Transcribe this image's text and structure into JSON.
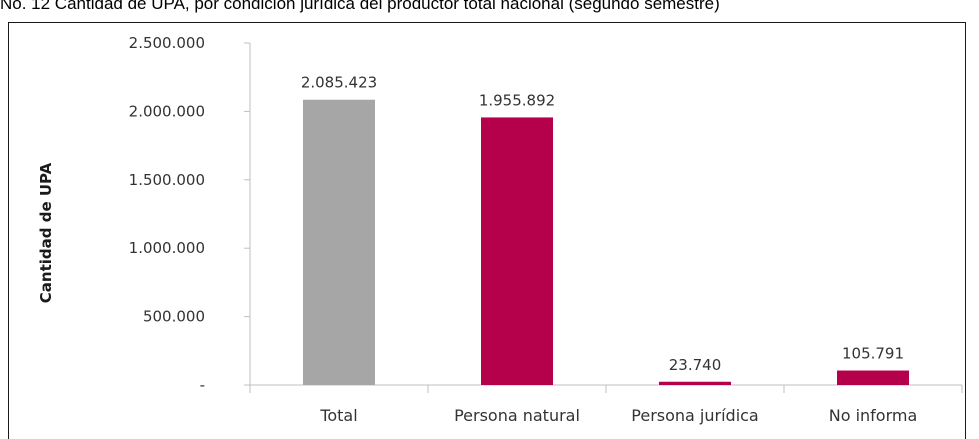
{
  "caption": "No. 12 Cantidad de UPA, por condición jurídica del productor total nacional (segundo semestre)",
  "chart_data": {
    "type": "bar",
    "title": "",
    "xlabel": "",
    "ylabel": "Cantidad de UPA",
    "categories": [
      "Total",
      "Persona natural",
      "Persona jurídica",
      "No informa"
    ],
    "values": [
      2085423,
      1955892,
      23740,
      105791
    ],
    "value_labels": [
      "2.085.423",
      "1.955.892",
      "23.740",
      "105.791"
    ],
    "bar_colors": [
      "#a6a6a6",
      "#b5004b",
      "#b5004b",
      "#b5004b"
    ],
    "ylim": [
      0,
      2500000
    ],
    "yticks": [
      0,
      500000,
      1000000,
      1500000,
      2000000,
      2500000
    ],
    "ytick_labels": [
      "-",
      "500.000",
      "1.000.000",
      "1.500.000",
      "2.000.000",
      "2.500.000"
    ],
    "grid": false,
    "legend": "none"
  }
}
